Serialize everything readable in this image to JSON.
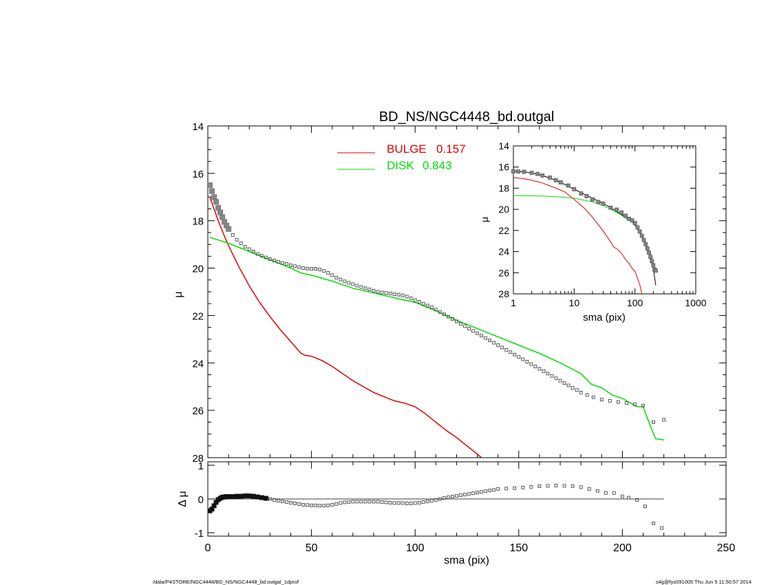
{
  "title": "BD_NS/NGC4448_bd.outgal",
  "footer": {
    "left": "/data/P4STORE/NGC4448/BD_NS/NGC4448_bd.outgal_1dprof",
    "right": "s4g@fys091005  Thu Jun  5 11:50:57 2014"
  },
  "chart_data": [
    {
      "panel": "main",
      "type": "line",
      "ylabel": "μ",
      "xlim": [
        0,
        250
      ],
      "ylim": [
        28,
        14
      ],
      "yaxis": "inverted",
      "yticks": [
        "14",
        "16",
        "18",
        "20",
        "22",
        "24",
        "26",
        "28"
      ],
      "legend_position": "top-center",
      "legend": [
        {
          "label": "BULGE",
          "value": "0.157",
          "color": "#dd0000"
        },
        {
          "label": "DISK",
          "value": "0.843",
          "color": "#00dd00"
        }
      ],
      "series": [
        {
          "name": "BULGE",
          "color": "#dd0000",
          "x": [
            1,
            3,
            5,
            8,
            10,
            15,
            20,
            25,
            30,
            35,
            40,
            45,
            47,
            50,
            55,
            60,
            65,
            70,
            80,
            90,
            95,
            100,
            105,
            110,
            115,
            120,
            125,
            130,
            132
          ],
          "y": [
            17.0,
            17.5,
            18.0,
            18.65,
            19.05,
            19.95,
            20.75,
            21.45,
            22.05,
            22.6,
            23.1,
            23.6,
            23.68,
            23.72,
            23.9,
            24.15,
            24.45,
            24.75,
            25.25,
            25.6,
            25.7,
            25.85,
            26.15,
            26.5,
            26.85,
            27.15,
            27.5,
            27.85,
            28.0
          ]
        },
        {
          "name": "DISK",
          "color": "#00dd00",
          "x": [
            1,
            10,
            20,
            30,
            40,
            45,
            50,
            60,
            70,
            80,
            90,
            100,
            110,
            120,
            130,
            140,
            150,
            160,
            170,
            180,
            185,
            190,
            195,
            200,
            205,
            207,
            210,
            213,
            216,
            220
          ],
          "y": [
            18.7,
            18.95,
            19.3,
            19.65,
            20.0,
            20.2,
            20.3,
            20.55,
            20.85,
            21.05,
            21.25,
            21.45,
            21.8,
            22.2,
            22.55,
            22.9,
            23.25,
            23.6,
            24.0,
            24.45,
            24.9,
            25.05,
            25.35,
            25.5,
            25.75,
            25.85,
            25.85,
            26.55,
            27.2,
            27.25
          ]
        },
        {
          "name": "data",
          "style": "squares",
          "x": [
            1,
            2,
            3,
            4,
            5,
            6,
            7,
            8,
            9,
            10,
            12,
            14,
            16,
            18,
            20,
            22,
            24,
            26,
            28,
            30,
            32,
            34,
            36,
            38,
            40,
            42,
            44,
            46,
            48,
            50,
            52,
            54,
            56,
            58,
            60,
            62,
            64,
            66,
            68,
            70,
            72,
            74,
            76,
            78,
            80,
            82,
            84,
            86,
            88,
            90,
            92,
            94,
            96,
            98,
            100,
            102,
            104,
            106,
            108,
            110,
            112,
            114,
            116,
            118,
            120,
            122,
            124,
            126,
            128,
            130,
            132,
            134,
            136,
            138,
            140,
            142,
            144,
            146,
            148,
            150,
            152,
            154,
            156,
            158,
            160,
            162,
            164,
            166,
            168,
            170,
            172,
            174,
            176,
            178,
            180,
            183,
            186,
            190,
            194,
            198,
            202,
            206,
            210,
            215,
            220
          ],
          "y": [
            16.5,
            16.75,
            17.0,
            17.2,
            17.45,
            17.65,
            17.85,
            18.05,
            18.2,
            18.35,
            18.6,
            18.8,
            18.95,
            19.1,
            19.2,
            19.3,
            19.4,
            19.48,
            19.55,
            19.62,
            19.68,
            19.73,
            19.78,
            19.82,
            19.88,
            19.92,
            19.96,
            20.0,
            20.02,
            20.03,
            20.03,
            20.06,
            20.12,
            20.2,
            20.3,
            20.4,
            20.48,
            20.56,
            20.62,
            20.68,
            20.74,
            20.8,
            20.85,
            20.9,
            20.95,
            21.0,
            21.03,
            21.05,
            21.07,
            21.1,
            21.12,
            21.15,
            21.2,
            21.27,
            21.35,
            21.42,
            21.5,
            21.58,
            21.66,
            21.75,
            21.85,
            21.95,
            22.05,
            22.15,
            22.25,
            22.35,
            22.45,
            22.55,
            22.65,
            22.75,
            22.85,
            22.95,
            23.05,
            23.15,
            23.25,
            23.35,
            23.45,
            23.55,
            23.65,
            23.75,
            23.85,
            23.95,
            24.05,
            24.15,
            24.25,
            24.35,
            24.45,
            24.55,
            24.65,
            24.75,
            24.85,
            24.95,
            25.05,
            25.15,
            25.25,
            25.35,
            25.45,
            25.55,
            25.6,
            25.65,
            25.7,
            25.75,
            25.8,
            26.5,
            26.4
          ]
        }
      ]
    },
    {
      "panel": "inset",
      "type": "line",
      "xlabel": "sma (pix)",
      "ylabel": "μ",
      "xscale": "log",
      "xlim": [
        1,
        1000
      ],
      "xticks": [
        "1",
        "10",
        "100",
        "1000"
      ],
      "ylim": [
        28,
        14
      ],
      "yaxis": "inverted",
      "yticks": [
        "14",
        "16",
        "18",
        "20",
        "22",
        "24",
        "26",
        "28"
      ],
      "series": [
        {
          "name": "BULGE",
          "color": "#dd0000",
          "x": [
            1,
            1.5,
            2,
            3,
            5,
            7,
            10,
            15,
            20,
            30,
            40,
            45,
            50,
            60,
            70,
            80,
            90,
            100,
            110,
            120,
            130
          ],
          "y": [
            17.0,
            17.1,
            17.25,
            17.5,
            18.0,
            18.35,
            19.05,
            19.95,
            20.75,
            22.05,
            23.1,
            23.6,
            23.72,
            24.15,
            24.75,
            25.1,
            25.6,
            25.85,
            26.5,
            27.15,
            28.0
          ]
        },
        {
          "name": "DISK",
          "color": "#00dd00",
          "x": [
            1,
            2,
            3,
            5,
            10,
            20,
            30,
            40,
            50,
            60,
            70,
            80
          ],
          "y": [
            18.7,
            18.72,
            18.75,
            18.8,
            18.95,
            19.3,
            19.65,
            20.0,
            20.3,
            20.55,
            20.85,
            21.05
          ]
        },
        {
          "name": "total",
          "color": "#000000",
          "x": [
            1,
            1.5,
            2,
            3,
            5,
            7,
            10,
            15,
            20,
            30,
            40,
            50,
            60,
            70,
            80,
            90,
            100,
            120,
            140,
            160,
            180,
            200,
            220
          ],
          "y": [
            16.4,
            16.45,
            16.55,
            16.8,
            17.25,
            17.65,
            18.1,
            18.6,
            18.95,
            19.45,
            19.85,
            20.2,
            20.5,
            20.7,
            20.95,
            21.2,
            21.5,
            22.25,
            23.0,
            23.75,
            24.6,
            25.6,
            27.2
          ]
        },
        {
          "name": "data",
          "style": "squares",
          "x": [
            1,
            1.2,
            1.5,
            2,
            2.5,
            3,
            4,
            5,
            6,
            8,
            10,
            13,
            16,
            20,
            25,
            30,
            40,
            50,
            60,
            70,
            80,
            90,
            100,
            110,
            120,
            130,
            140,
            150,
            160,
            170,
            180,
            190,
            200,
            210,
            220
          ],
          "y": [
            16.4,
            16.42,
            16.45,
            16.55,
            16.65,
            16.8,
            17.0,
            17.25,
            17.45,
            17.75,
            18.1,
            18.5,
            18.75,
            19.05,
            19.3,
            19.45,
            19.85,
            20.03,
            20.3,
            20.6,
            20.9,
            21.05,
            21.3,
            21.7,
            22.1,
            22.5,
            22.9,
            23.3,
            23.7,
            24.1,
            24.5,
            24.9,
            25.3,
            25.7,
            25.8
          ]
        }
      ]
    },
    {
      "panel": "residual",
      "type": "scatter",
      "xlabel": "sma (pix)",
      "ylabel": "Δ μ",
      "xlim": [
        0,
        250
      ],
      "xticks": [
        "0",
        "50",
        "100",
        "150",
        "200",
        "250"
      ],
      "ylim": [
        -1,
        1
      ],
      "yticks": [
        "1",
        "0",
        "-1"
      ],
      "zero_line_xrange": [
        0,
        220
      ],
      "series": [
        {
          "name": "residual",
          "style": "squares",
          "x": [
            1,
            2,
            3,
            4,
            5,
            6,
            7,
            8,
            9,
            10,
            12,
            14,
            16,
            18,
            20,
            22,
            24,
            26,
            28,
            30,
            32,
            34,
            36,
            38,
            40,
            42,
            44,
            46,
            48,
            50,
            52,
            54,
            56,
            58,
            60,
            62,
            64,
            66,
            68,
            70,
            72,
            74,
            76,
            78,
            80,
            82,
            84,
            86,
            88,
            90,
            92,
            94,
            96,
            98,
            100,
            102,
            104,
            106,
            108,
            110,
            112,
            114,
            116,
            118,
            120,
            122,
            124,
            126,
            128,
            130,
            132,
            134,
            136,
            138,
            140,
            144,
            148,
            152,
            156,
            160,
            164,
            168,
            172,
            176,
            180,
            184,
            188,
            192,
            196,
            200,
            203,
            207,
            211,
            215,
            219
          ],
          "y": [
            -0.35,
            -0.3,
            -0.2,
            -0.1,
            -0.02,
            0.02,
            0.05,
            0.06,
            0.07,
            0.07,
            0.07,
            0.08,
            0.08,
            0.09,
            0.09,
            0.08,
            0.06,
            0.04,
            0.02,
            0.0,
            -0.03,
            -0.05,
            -0.07,
            -0.09,
            -0.11,
            -0.13,
            -0.15,
            -0.17,
            -0.18,
            -0.19,
            -0.19,
            -0.2,
            -0.2,
            -0.19,
            -0.17,
            -0.15,
            -0.12,
            -0.1,
            -0.09,
            -0.08,
            -0.08,
            -0.08,
            -0.08,
            -0.08,
            -0.08,
            -0.08,
            -0.09,
            -0.1,
            -0.11,
            -0.12,
            -0.12,
            -0.12,
            -0.13,
            -0.13,
            -0.12,
            -0.11,
            -0.09,
            -0.07,
            -0.05,
            -0.03,
            0.0,
            0.03,
            0.05,
            0.07,
            0.09,
            0.11,
            0.13,
            0.15,
            0.17,
            0.19,
            0.21,
            0.23,
            0.25,
            0.27,
            0.3,
            0.31,
            0.32,
            0.34,
            0.36,
            0.38,
            0.39,
            0.4,
            0.39,
            0.38,
            0.35,
            0.3,
            0.24,
            0.18,
            0.18,
            0.08,
            0.04,
            -0.03,
            -0.22,
            -0.72,
            -0.86
          ]
        }
      ]
    }
  ]
}
